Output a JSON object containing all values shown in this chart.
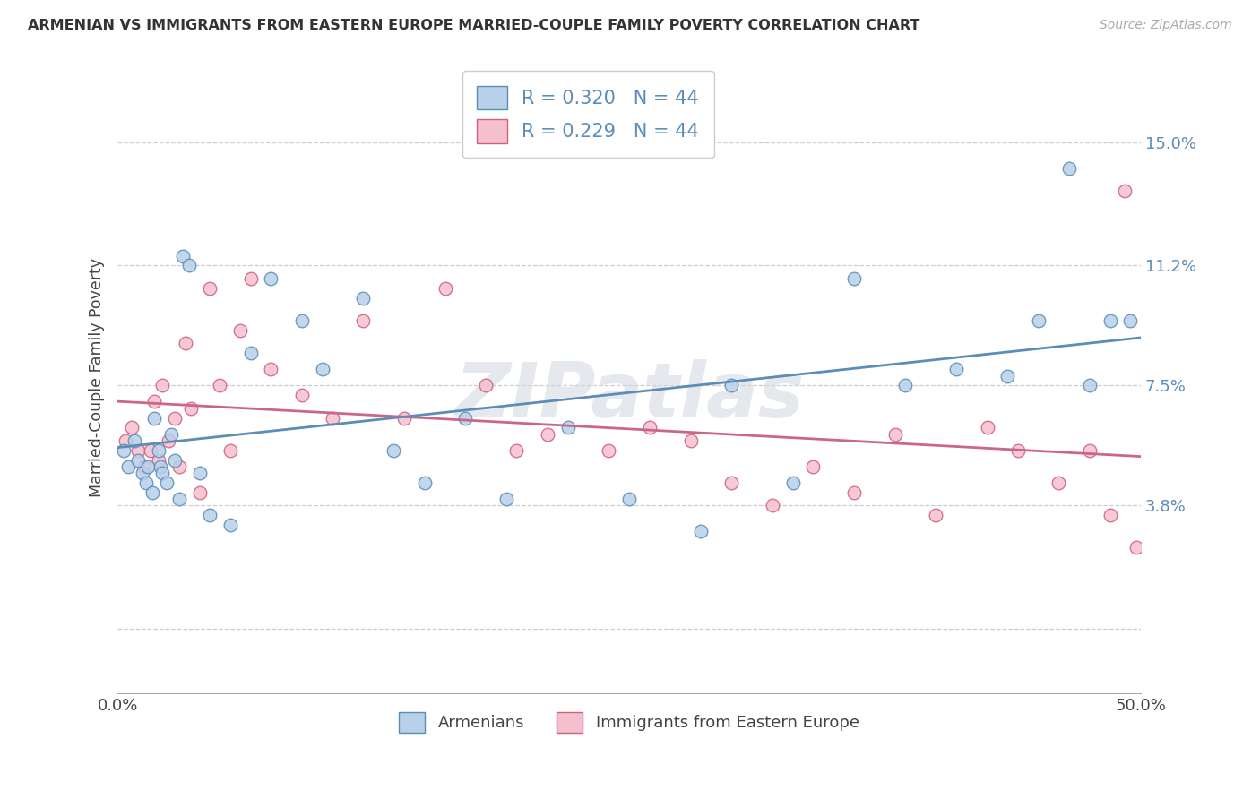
{
  "title": "ARMENIAN VS IMMIGRANTS FROM EASTERN EUROPE MARRIED-COUPLE FAMILY POVERTY CORRELATION CHART",
  "source": "Source: ZipAtlas.com",
  "ylabel": "Married-Couple Family Poverty",
  "xlim": [
    0,
    50
  ],
  "ylim": [
    -2.0,
    17.5
  ],
  "ytick_vals": [
    0,
    3.8,
    7.5,
    11.2,
    15.0
  ],
  "ytick_labels": [
    "",
    "3.8%",
    "7.5%",
    "11.2%",
    "15.0%"
  ],
  "xtick_vals": [
    0,
    10,
    20,
    30,
    40,
    50
  ],
  "xtick_labels": [
    "0.0%",
    "",
    "",
    "",
    "",
    "50.0%"
  ],
  "legend_label1": "Armenians",
  "legend_label2": "Immigrants from Eastern Europe",
  "R1": "0.320",
  "N1": "44",
  "R2": "0.229",
  "N2": "44",
  "color_armenian_fill": "#b8d0e8",
  "color_armenian_edge": "#5b8db8",
  "color_eastern_fill": "#f5c0ce",
  "color_eastern_edge": "#d06080",
  "color_line1": "#5b8db8",
  "color_line2": "#cc6688",
  "watermark": "ZIPatlas",
  "background_color": "#ffffff",
  "grid_color": "#c8c8c8",
  "scatter_size": 110,
  "armenian_x": [
    0.3,
    0.5,
    0.8,
    1.0,
    1.2,
    1.4,
    1.5,
    1.7,
    1.8,
    2.0,
    2.1,
    2.2,
    2.4,
    2.6,
    2.8,
    3.0,
    3.2,
    3.5,
    4.0,
    4.5,
    5.5,
    6.5,
    7.5,
    9.0,
    10.0,
    12.0,
    13.5,
    15.0,
    17.0,
    19.0,
    22.0,
    25.0,
    28.5,
    30.0,
    33.0,
    36.0,
    38.5,
    41.0,
    43.5,
    45.0,
    46.5,
    47.5,
    48.5,
    49.5
  ],
  "armenian_y": [
    5.5,
    5.0,
    5.8,
    5.2,
    4.8,
    4.5,
    5.0,
    4.2,
    6.5,
    5.5,
    5.0,
    4.8,
    4.5,
    6.0,
    5.2,
    4.0,
    11.5,
    11.2,
    4.8,
    3.5,
    3.2,
    8.5,
    10.8,
    9.5,
    8.0,
    10.2,
    5.5,
    4.5,
    6.5,
    4.0,
    6.2,
    4.0,
    3.0,
    7.5,
    4.5,
    10.8,
    7.5,
    8.0,
    7.8,
    9.5,
    14.2,
    7.5,
    9.5,
    9.5
  ],
  "eastern_x": [
    0.4,
    0.7,
    1.0,
    1.3,
    1.6,
    1.8,
    2.0,
    2.2,
    2.5,
    2.8,
    3.0,
    3.3,
    3.6,
    4.0,
    4.5,
    5.0,
    5.5,
    6.0,
    6.5,
    7.5,
    9.0,
    10.5,
    12.0,
    14.0,
    16.0,
    18.0,
    19.5,
    21.0,
    24.0,
    26.0,
    28.0,
    30.0,
    32.0,
    34.0,
    36.0,
    38.0,
    40.0,
    42.5,
    44.0,
    46.0,
    47.5,
    48.5,
    49.2,
    49.8
  ],
  "eastern_y": [
    5.8,
    6.2,
    5.5,
    5.0,
    5.5,
    7.0,
    5.2,
    7.5,
    5.8,
    6.5,
    5.0,
    8.8,
    6.8,
    4.2,
    10.5,
    7.5,
    5.5,
    9.2,
    10.8,
    8.0,
    7.2,
    6.5,
    9.5,
    6.5,
    10.5,
    7.5,
    5.5,
    6.0,
    5.5,
    6.2,
    5.8,
    4.5,
    3.8,
    5.0,
    4.2,
    6.0,
    3.5,
    6.2,
    5.5,
    4.5,
    5.5,
    3.5,
    13.5,
    2.5
  ]
}
